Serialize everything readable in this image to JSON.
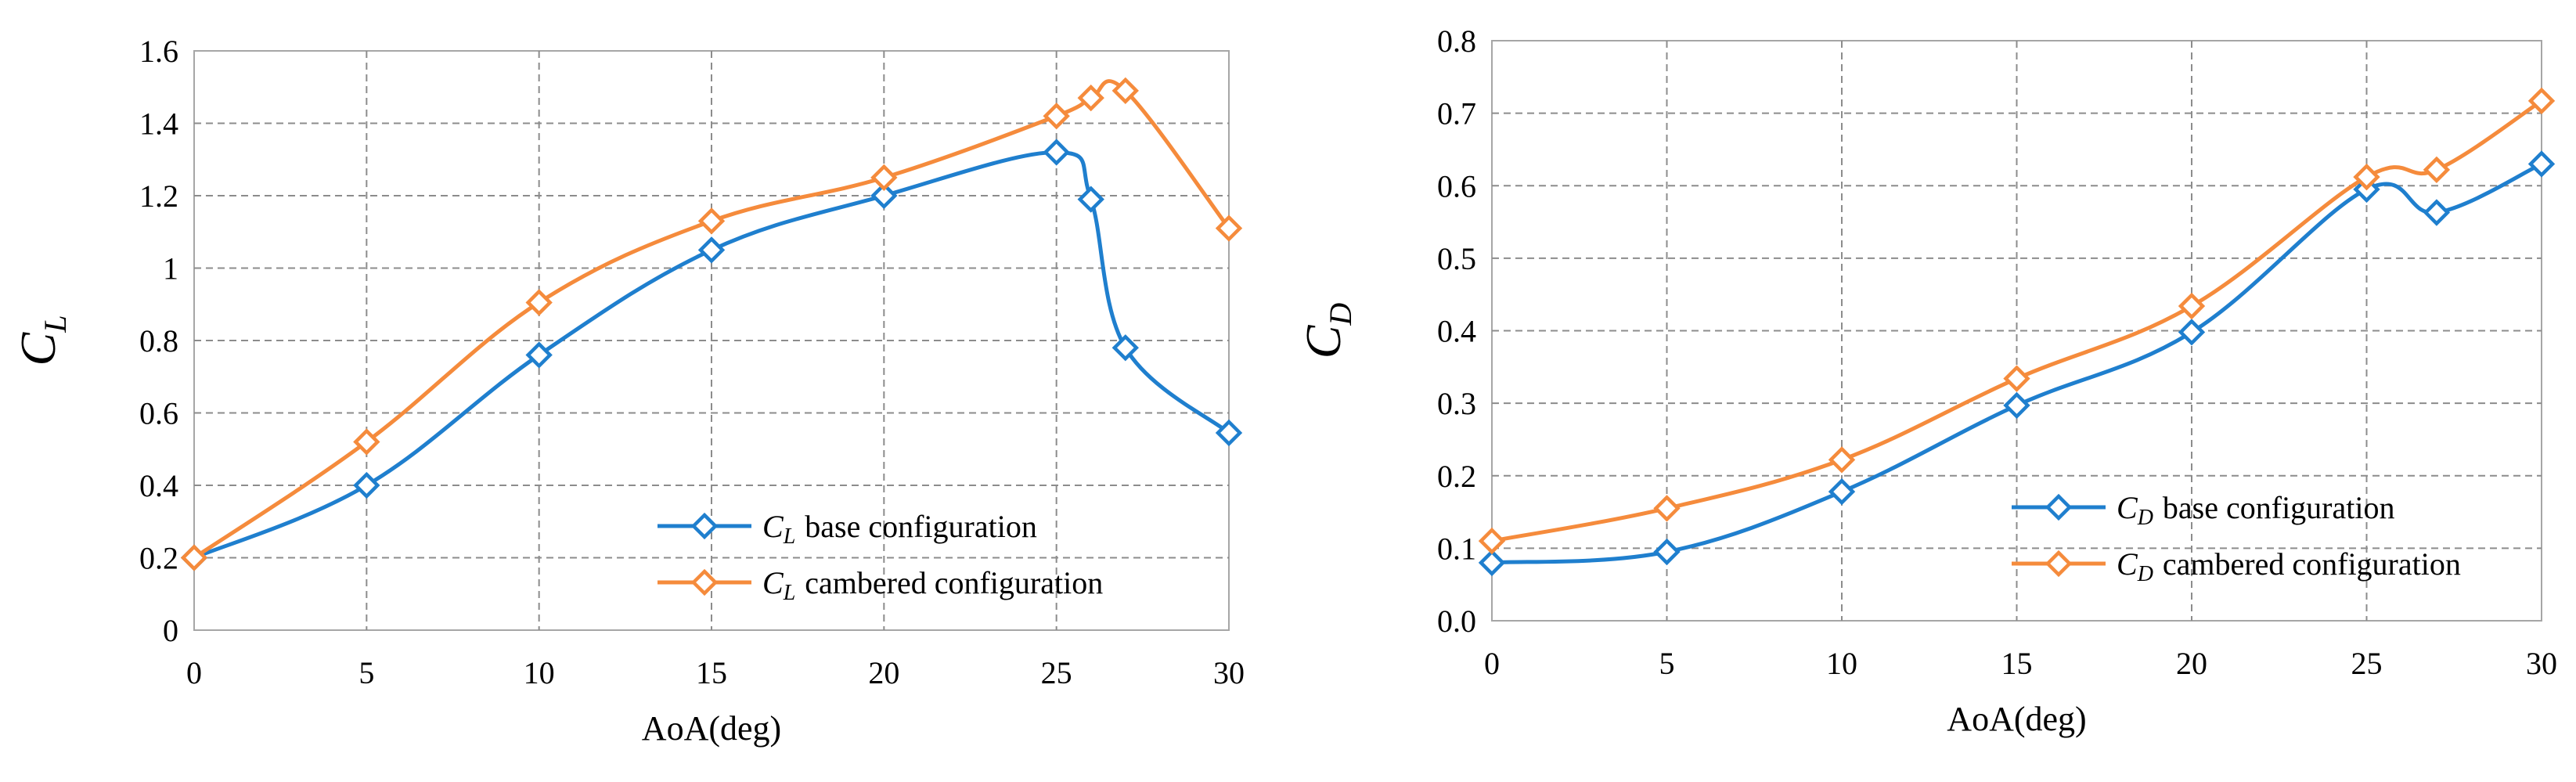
{
  "chart_data": [
    {
      "type": "line",
      "title": "",
      "xlabel": "AoA(deg)",
      "ylabel": "C",
      "ylabel_sub": "L",
      "xlim": [
        0,
        30
      ],
      "ylim": [
        0,
        1.6
      ],
      "xticks": [
        "0",
        "5",
        "10",
        "15",
        "20",
        "25",
        "30"
      ],
      "yticks": [
        "0",
        "0.2",
        "0.4",
        "0.6",
        "0.8",
        "1",
        "1.2",
        "1.4",
        "1.6"
      ],
      "grid": true,
      "legend_position": "bottom-right",
      "series": [
        {
          "legend_symbol": "C",
          "legend_sub": "L",
          "legend_text": "base configuration",
          "color": "#1f7fce",
          "x": [
            0,
            5,
            10,
            15,
            20,
            25,
            26,
            27,
            30
          ],
          "y": [
            0.2,
            0.4,
            0.76,
            1.05,
            1.2,
            1.32,
            1.19,
            0.78,
            0.545
          ]
        },
        {
          "legend_symbol": "C",
          "legend_sub": "L",
          "legend_text": "cambered configuration",
          "color": "#f58b3c",
          "x": [
            0,
            5,
            10,
            15,
            20,
            25,
            26,
            27,
            30
          ],
          "y": [
            0.2,
            0.52,
            0.905,
            1.13,
            1.25,
            1.42,
            1.47,
            1.49,
            1.11
          ]
        }
      ]
    },
    {
      "type": "line",
      "title": "",
      "xlabel": "AoA(deg)",
      "ylabel": "C",
      "ylabel_sub": "D",
      "xlim": [
        0,
        30
      ],
      "ylim": [
        0,
        0.8
      ],
      "xticks": [
        "0",
        "5",
        "10",
        "15",
        "20",
        "25",
        "30"
      ],
      "yticks": [
        "0.0",
        "0.1",
        "0.2",
        "0.3",
        "0.4",
        "0.5",
        "0.6",
        "0.7",
        "0.8"
      ],
      "grid": true,
      "legend_position": "bottom-right",
      "series": [
        {
          "legend_symbol": "C",
          "legend_sub": "D",
          "legend_text": "base configuration",
          "color": "#1f7fce",
          "x": [
            0,
            5,
            10,
            15,
            20,
            25,
            27,
            30
          ],
          "y": [
            0.08,
            0.095,
            0.178,
            0.297,
            0.398,
            0.595,
            0.563,
            0.63
          ]
        },
        {
          "legend_symbol": "C",
          "legend_sub": "D",
          "legend_text": "cambered configuration",
          "color": "#f58b3c",
          "x": [
            0,
            5,
            10,
            15,
            20,
            25,
            27,
            30
          ],
          "y": [
            0.11,
            0.155,
            0.222,
            0.334,
            0.434,
            0.612,
            0.622,
            0.717
          ]
        }
      ]
    }
  ]
}
